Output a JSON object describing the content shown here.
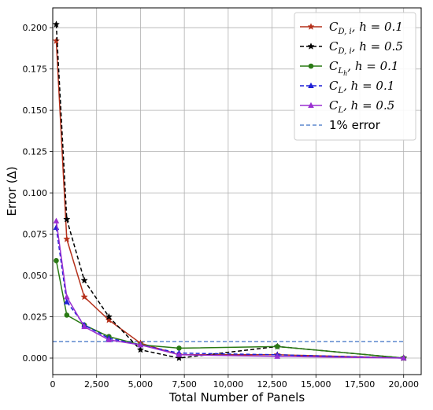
{
  "chart_data": {
    "type": "line",
    "xlabel": "Total Number of Panels",
    "ylabel": "Error (Δ)",
    "xlim": [
      0,
      21000
    ],
    "ylim": [
      -0.01,
      0.212
    ],
    "xticks": [
      0,
      2500,
      5000,
      7500,
      10000,
      12500,
      15000,
      17500,
      20000
    ],
    "xtick_labels": [
      "0",
      "2,500",
      "5,000",
      "7,500",
      "10,000",
      "12,500",
      "15,000",
      "17,500",
      "20,000"
    ],
    "yticks": [
      0.0,
      0.025,
      0.05,
      0.075,
      0.1,
      0.125,
      0.15,
      0.175,
      0.2
    ],
    "ytick_labels": [
      "0.000",
      "0.025",
      "0.050",
      "0.075",
      "0.100",
      "0.125",
      "0.150",
      "0.175",
      "0.200"
    ],
    "grid": true,
    "legend_position": "top-right",
    "series": [
      {
        "name": "C_{D,i}, h = 0.1",
        "label_main": "C",
        "label_sub": "D, i",
        "label_rest": ",  h = 0.1",
        "color": "#b5301a",
        "dash": "solid",
        "marker": "star",
        "x": [
          200,
          800,
          1800,
          3200,
          5000,
          7200,
          12800,
          20000
        ],
        "y": [
          0.192,
          0.072,
          0.037,
          0.023,
          0.009,
          0.002,
          0.002,
          0.0
        ]
      },
      {
        "name": "C_{D,i}, h = 0.5",
        "label_main": "C",
        "label_sub": "D, i",
        "label_rest": ",  h = 0.5",
        "color": "#000000",
        "dash": "dashed",
        "marker": "star",
        "x": [
          200,
          800,
          1800,
          3200,
          5000,
          7200,
          12800,
          20000
        ],
        "y": [
          0.202,
          0.084,
          0.047,
          0.025,
          0.005,
          0.0,
          0.007,
          0.0
        ]
      },
      {
        "name": "C_{L_h}, h = 0.1",
        "label_main": "C",
        "label_sub": "L",
        "label_subsub": "h",
        "label_rest": ",  h = 0.1",
        "color": "#2a7a14",
        "dash": "solid",
        "marker": "circle",
        "x": [
          200,
          800,
          1800,
          3200,
          5000,
          7200,
          12800,
          20000
        ],
        "y": [
          0.059,
          0.026,
          0.02,
          0.013,
          0.008,
          0.006,
          0.007,
          0.0
        ]
      },
      {
        "name": "C_L, h = 0.1",
        "label_main": "C",
        "label_sub": "L",
        "label_rest": ",  h = 0.1",
        "color": "#1f1fd6",
        "dash": "dashed",
        "marker": "triangle",
        "x": [
          200,
          800,
          1800,
          3200,
          5000,
          7200,
          12800,
          20000
        ],
        "y": [
          0.079,
          0.034,
          0.02,
          0.012,
          0.008,
          0.003,
          0.002,
          0.0
        ]
      },
      {
        "name": "C_L, h = 0.5",
        "label_main": "C",
        "label_sub": "L",
        "label_rest": ",  h = 0.5",
        "color": "#9a2fd1",
        "dash": "solid",
        "marker": "triangle",
        "x": [
          200,
          800,
          1800,
          3200,
          5000,
          7200,
          12800,
          20000
        ],
        "y": [
          0.083,
          0.037,
          0.019,
          0.011,
          0.008,
          0.002,
          0.001,
          0.0
        ]
      }
    ],
    "reference_line": {
      "name": "1% error",
      "y": 0.01,
      "x_range": [
        0,
        20000
      ],
      "color": "#3a6fc4",
      "dash": "dashed"
    }
  }
}
